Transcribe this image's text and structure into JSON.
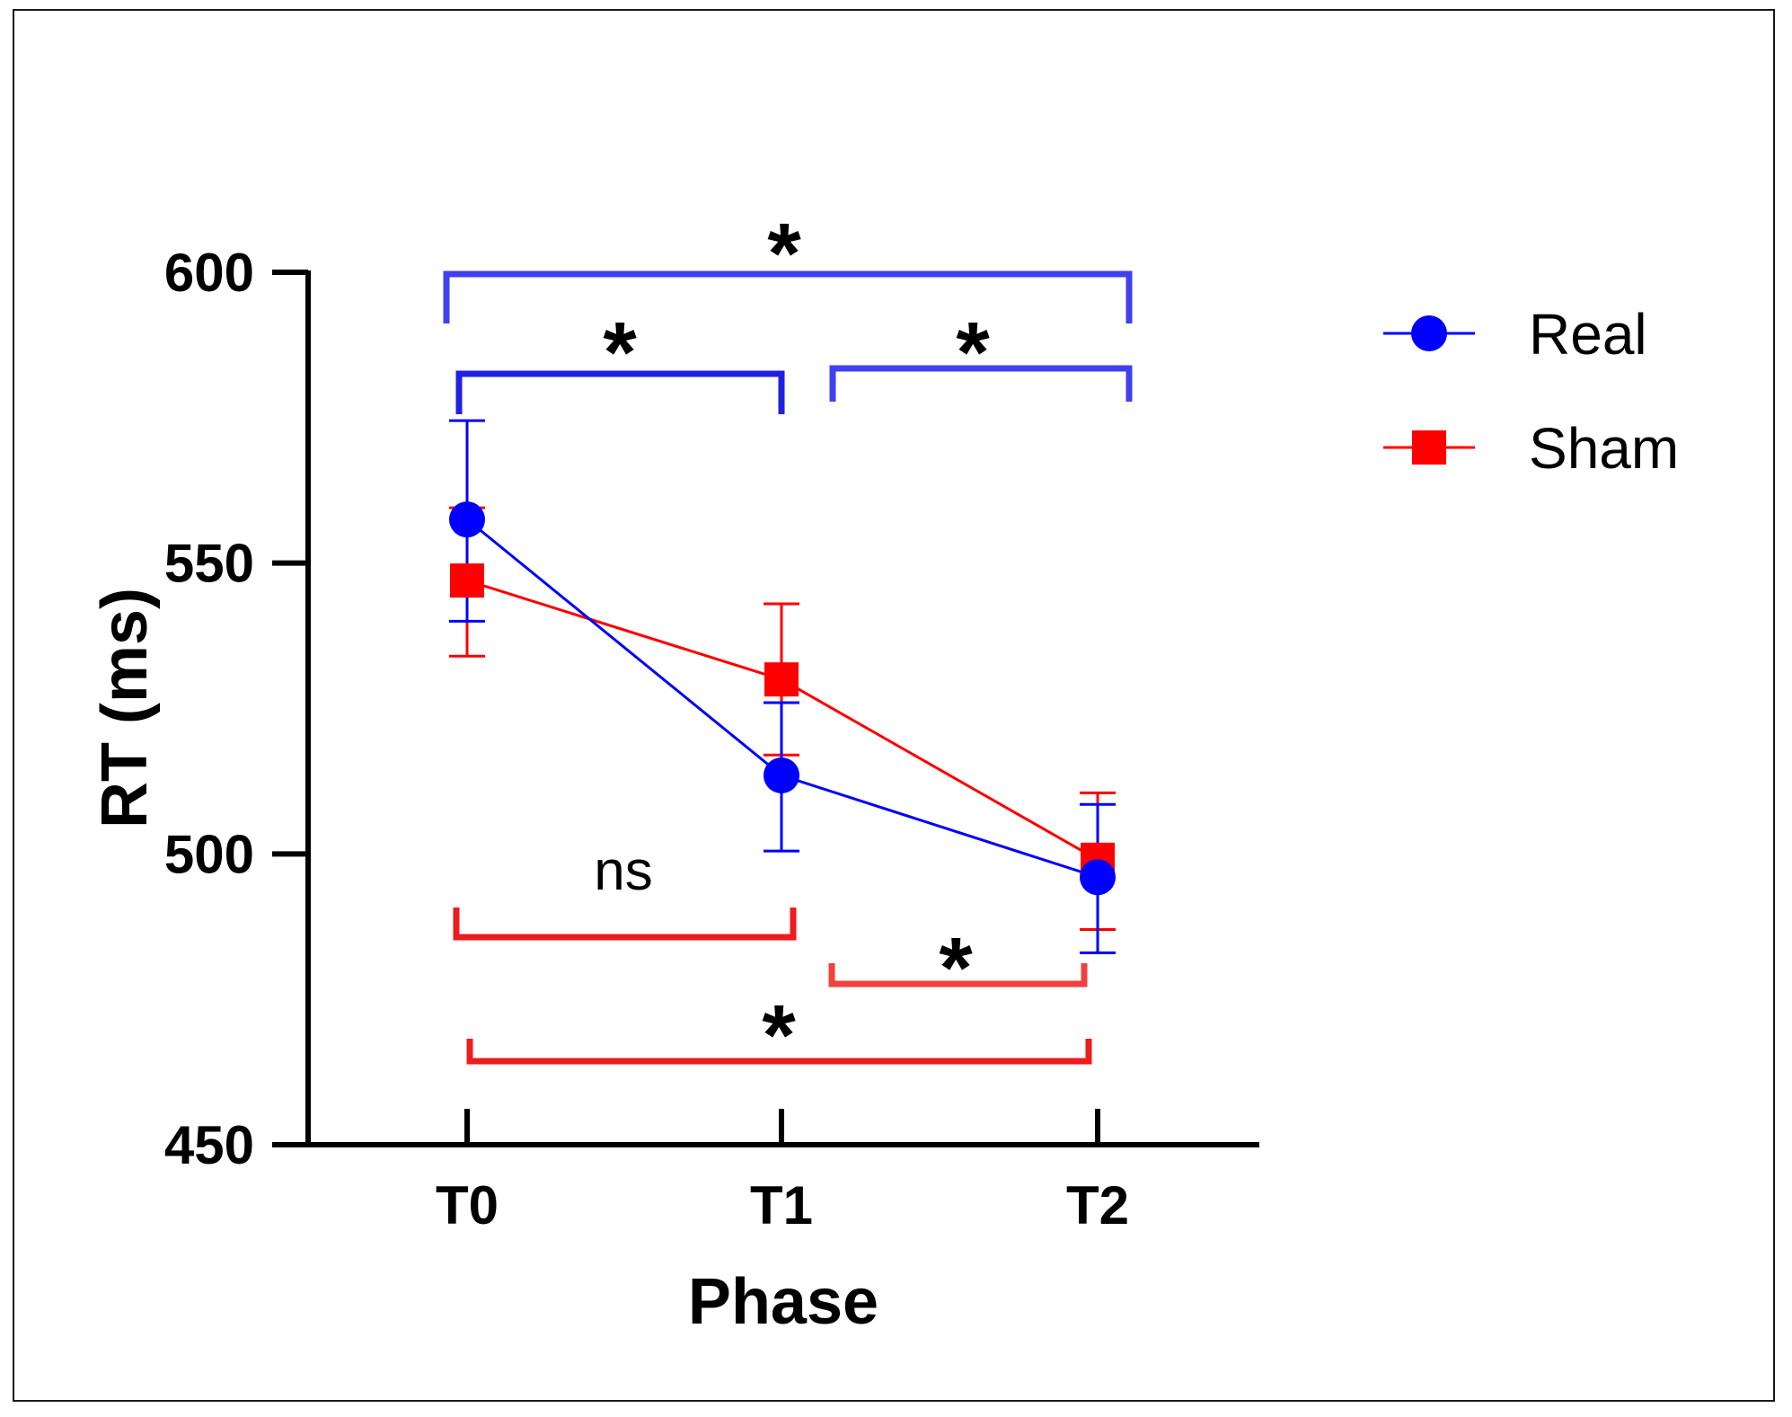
{
  "chart_data": {
    "type": "line",
    "title": "",
    "xlabel": "Phase",
    "ylabel": "RT (ms)",
    "categories": [
      "T0",
      "T1",
      "T2"
    ],
    "ylim": [
      450,
      600
    ],
    "yticks": [
      450,
      500,
      550,
      600
    ],
    "series": [
      {
        "name": "Real",
        "color": "#0000ff",
        "marker": "circle",
        "values": [
          557.5,
          513.5,
          496
        ],
        "err_upper": [
          574.5,
          526,
          508.5
        ],
        "err_lower": [
          540,
          500.5,
          483
        ]
      },
      {
        "name": "Sham",
        "color": "#ff0000",
        "marker": "square",
        "values": [
          547,
          530,
          499
        ],
        "err_upper": [
          559.5,
          543,
          510.5
        ],
        "err_lower": [
          534,
          517,
          487
        ]
      }
    ],
    "legend_position": "top-right",
    "significance": [
      {
        "series": "Real",
        "from": "T0",
        "to": "T2",
        "label": "*"
      },
      {
        "series": "Real",
        "from": "T0",
        "to": "T1",
        "label": "*"
      },
      {
        "series": "Real",
        "from": "T1",
        "to": "T2",
        "label": "*"
      },
      {
        "series": "Sham",
        "from": "T0",
        "to": "T1",
        "label": "ns"
      },
      {
        "series": "Sham",
        "from": "T1",
        "to": "T2",
        "label": "*"
      },
      {
        "series": "Sham",
        "from": "T0",
        "to": "T2",
        "label": "*"
      }
    ]
  }
}
